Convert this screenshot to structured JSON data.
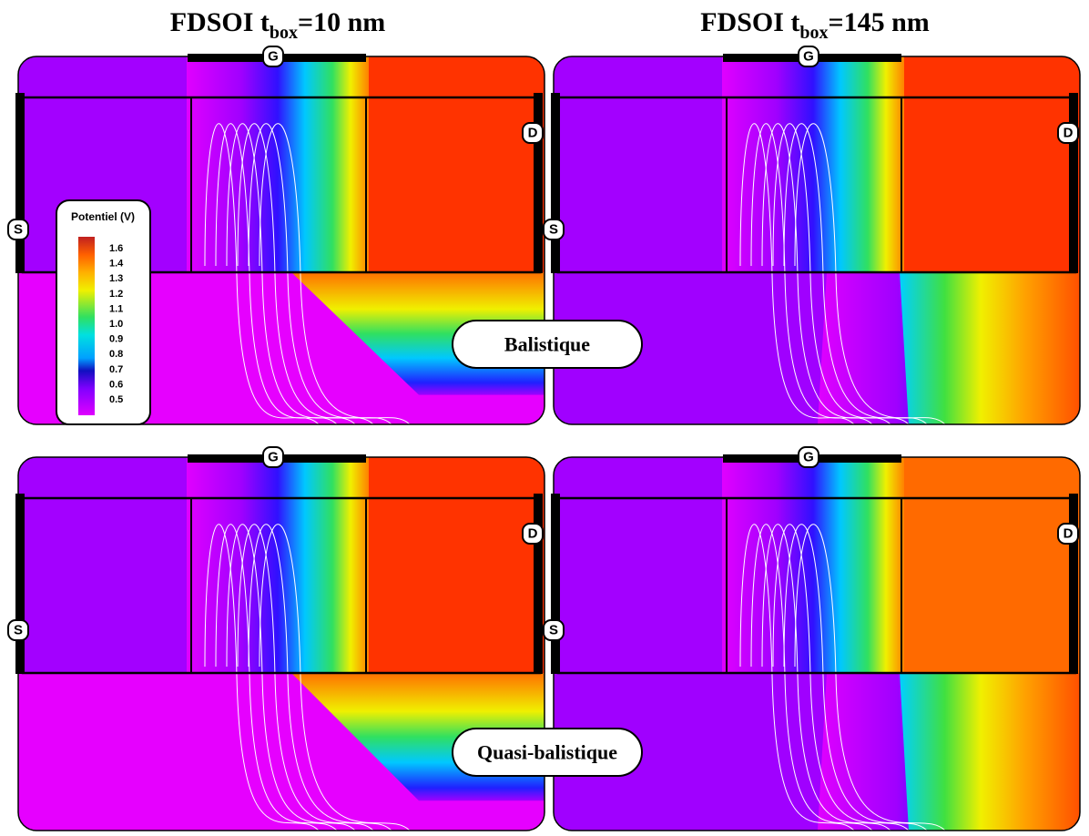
{
  "columns": [
    {
      "title_prefix": "FDSOI t",
      "title_sub": "box",
      "title_suffix": "=10 nm"
    },
    {
      "title_prefix": "FDSOI t",
      "title_sub": "box",
      "title_suffix": "=145 nm"
    }
  ],
  "rows": [
    {
      "label": "Balistique"
    },
    {
      "label": "Quasi-balistique"
    }
  ],
  "terminals": {
    "gate": "G",
    "drain": "D",
    "source": "S"
  },
  "legend": {
    "title": "Potentiel (V)",
    "labels": [
      "1.6",
      "1.4",
      "1.3",
      "1.2",
      "1.1",
      "1.0",
      "0.9",
      "0.8",
      "0.7",
      "0.6",
      "0.5"
    ]
  }
}
